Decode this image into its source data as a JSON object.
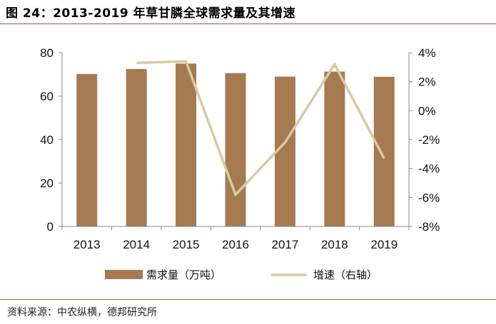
{
  "title": "图 24：2013-2019 年草甘膦全球需求量及其增速",
  "source": "资料来源：中农纵横，德邦研究所",
  "colors": {
    "accent": "#a35a2b",
    "bar": "#a57a50",
    "line": "#d9c9a0"
  },
  "chart_data": {
    "type": "bar",
    "categories": [
      "2013",
      "2014",
      "2015",
      "2016",
      "2017",
      "2018",
      "2019"
    ],
    "series": [
      {
        "name": "需求量（万吨）",
        "type": "bar",
        "axis": "left",
        "values": [
          70.2,
          72.5,
          75.0,
          70.6,
          69.0,
          71.3,
          68.9
        ]
      },
      {
        "name": "增速（右轴）",
        "type": "line",
        "axis": "right",
        "values": [
          null,
          3.3,
          3.4,
          -5.8,
          -2.2,
          3.2,
          -3.3
        ],
        "unit": "%"
      }
    ],
    "ylim_left": [
      0,
      80
    ],
    "yticks_left": [
      "0",
      "20",
      "40",
      "60",
      "80"
    ],
    "ylim_right": [
      -8,
      4
    ],
    "yticks_right": [
      "-8%",
      "-6%",
      "-4%",
      "-2%",
      "0%",
      "2%",
      "4%"
    ],
    "legend_position": "bottom",
    "grid": false
  }
}
